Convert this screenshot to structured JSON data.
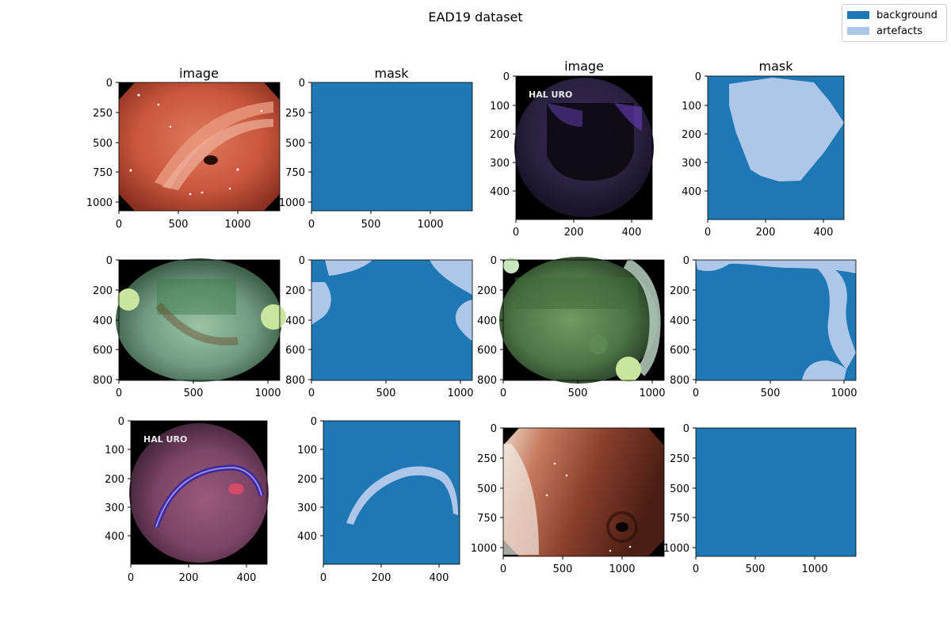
{
  "figure": {
    "title": "EAD19 dataset"
  },
  "legend": {
    "items": [
      {
        "label": "background",
        "color": "#1f77b4"
      },
      {
        "label": "artefacts",
        "color": "#aec7e8"
      }
    ]
  },
  "panels": [
    {
      "title": "image",
      "kind": "image",
      "scene": "gastric",
      "xticks": [
        "0",
        "500",
        "1000"
      ],
      "yticks": [
        "0",
        "250",
        "500",
        "750",
        "1000"
      ]
    },
    {
      "title": "mask",
      "kind": "mask",
      "shape": "none",
      "xticks": [
        "0",
        "500",
        "1000"
      ],
      "yticks": [
        "0",
        "250",
        "500",
        "750",
        "1000"
      ]
    },
    {
      "title": "image",
      "kind": "image",
      "scene": "uro-dark",
      "overlay_text": "HAL URO",
      "xticks": [
        "0",
        "200",
        "400"
      ],
      "yticks": [
        "0",
        "100",
        "200",
        "300",
        "400"
      ]
    },
    {
      "title": "mask",
      "kind": "mask",
      "shape": "polygon",
      "xticks": [
        "0",
        "200",
        "400"
      ],
      "yticks": [
        "0",
        "100",
        "200",
        "300",
        "400"
      ]
    },
    {
      "title": "",
      "kind": "image",
      "scene": "green-1",
      "xticks": [
        "0",
        "500",
        "1000"
      ],
      "yticks": [
        "0",
        "200",
        "400",
        "600",
        "800"
      ]
    },
    {
      "title": "",
      "kind": "mask",
      "shape": "corners",
      "xticks": [
        "0",
        "500",
        "1000"
      ],
      "yticks": [
        "0",
        "200",
        "400",
        "600",
        "800"
      ]
    },
    {
      "title": "",
      "kind": "image",
      "scene": "green-2",
      "xticks": [
        "0",
        "500",
        "1000"
      ],
      "yticks": [
        "0",
        "200",
        "400",
        "600",
        "800"
      ]
    },
    {
      "title": "",
      "kind": "mask",
      "shape": "band",
      "xticks": [
        "0",
        "500",
        "1000"
      ],
      "yticks": [
        "0",
        "200",
        "400",
        "600",
        "800"
      ]
    },
    {
      "title": "",
      "kind": "image",
      "scene": "uro-pink",
      "overlay_text": "HAL URO",
      "xticks": [
        "0",
        "200",
        "400"
      ],
      "yticks": [
        "0",
        "100",
        "200",
        "300",
        "400"
      ]
    },
    {
      "title": "",
      "kind": "mask",
      "shape": "arc",
      "xticks": [
        "0",
        "200",
        "400"
      ],
      "yticks": [
        "0",
        "100",
        "200",
        "300",
        "400"
      ]
    },
    {
      "title": "",
      "kind": "image",
      "scene": "red-brown",
      "xticks": [
        "0",
        "500",
        "1000"
      ],
      "yticks": [
        "0",
        "250",
        "500",
        "750",
        "1000"
      ]
    },
    {
      "title": "",
      "kind": "mask",
      "shape": "none",
      "xticks": [
        "0",
        "500",
        "1000"
      ],
      "yticks": [
        "0",
        "250",
        "500",
        "750",
        "1000"
      ]
    }
  ]
}
